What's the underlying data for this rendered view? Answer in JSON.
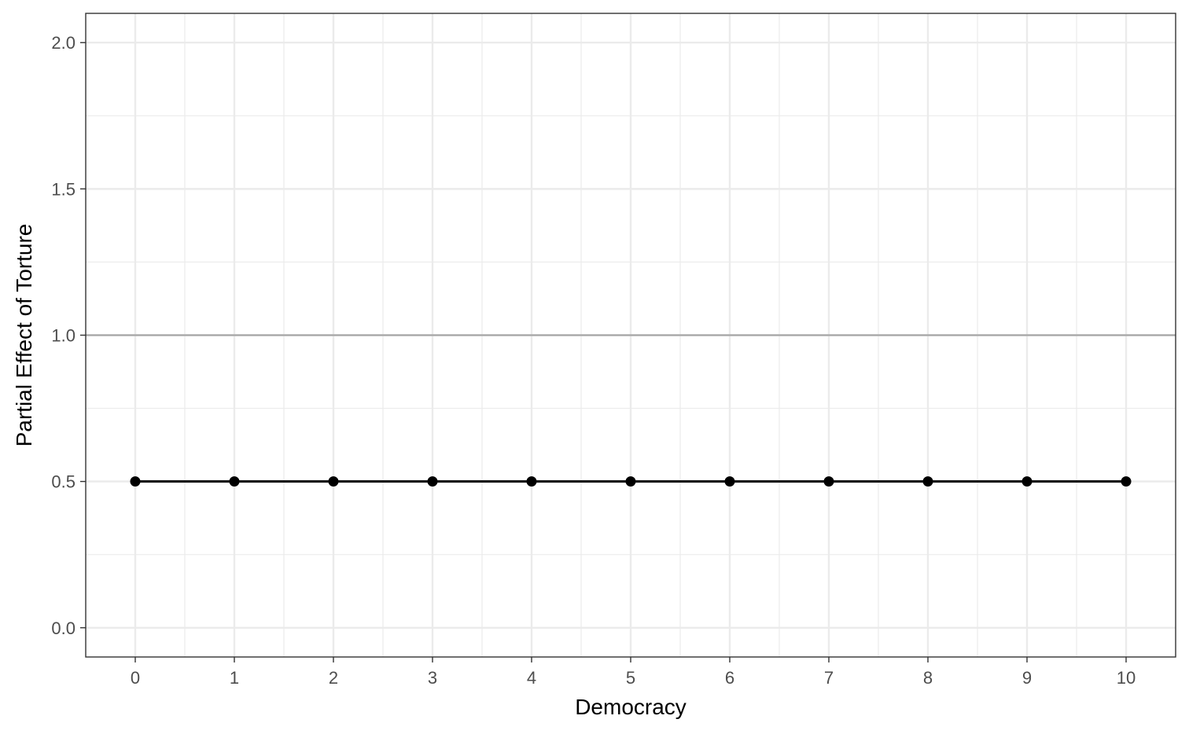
{
  "chart_data": {
    "type": "line",
    "title": "",
    "xlabel": "Democracy",
    "ylabel": "Partial Effect of Torture",
    "x": [
      0,
      1,
      2,
      3,
      4,
      5,
      6,
      7,
      8,
      9,
      10
    ],
    "series": [
      {
        "values": [
          0.5,
          0.5,
          0.5,
          0.5,
          0.5,
          0.5,
          0.5,
          0.5,
          0.5,
          0.5,
          0.5
        ]
      }
    ],
    "reference_line": {
      "y": 1.0,
      "color": "#a6a6a6"
    },
    "xticks": [
      "0",
      "1",
      "2",
      "3",
      "4",
      "5",
      "6",
      "7",
      "8",
      "9",
      "10"
    ],
    "yticks": [
      "0.0",
      "0.5",
      "1.0",
      "1.5",
      "2.0"
    ],
    "ytick_values": [
      0.0,
      0.5,
      1.0,
      1.5,
      2.0
    ],
    "xlim": [
      -0.5,
      10.5
    ],
    "ylim": [
      -0.1,
      2.1
    ],
    "grid": true,
    "legend": "none",
    "colors": {
      "series": "#000000",
      "grid": "#ebebeb",
      "panel_border": "#333333"
    }
  }
}
